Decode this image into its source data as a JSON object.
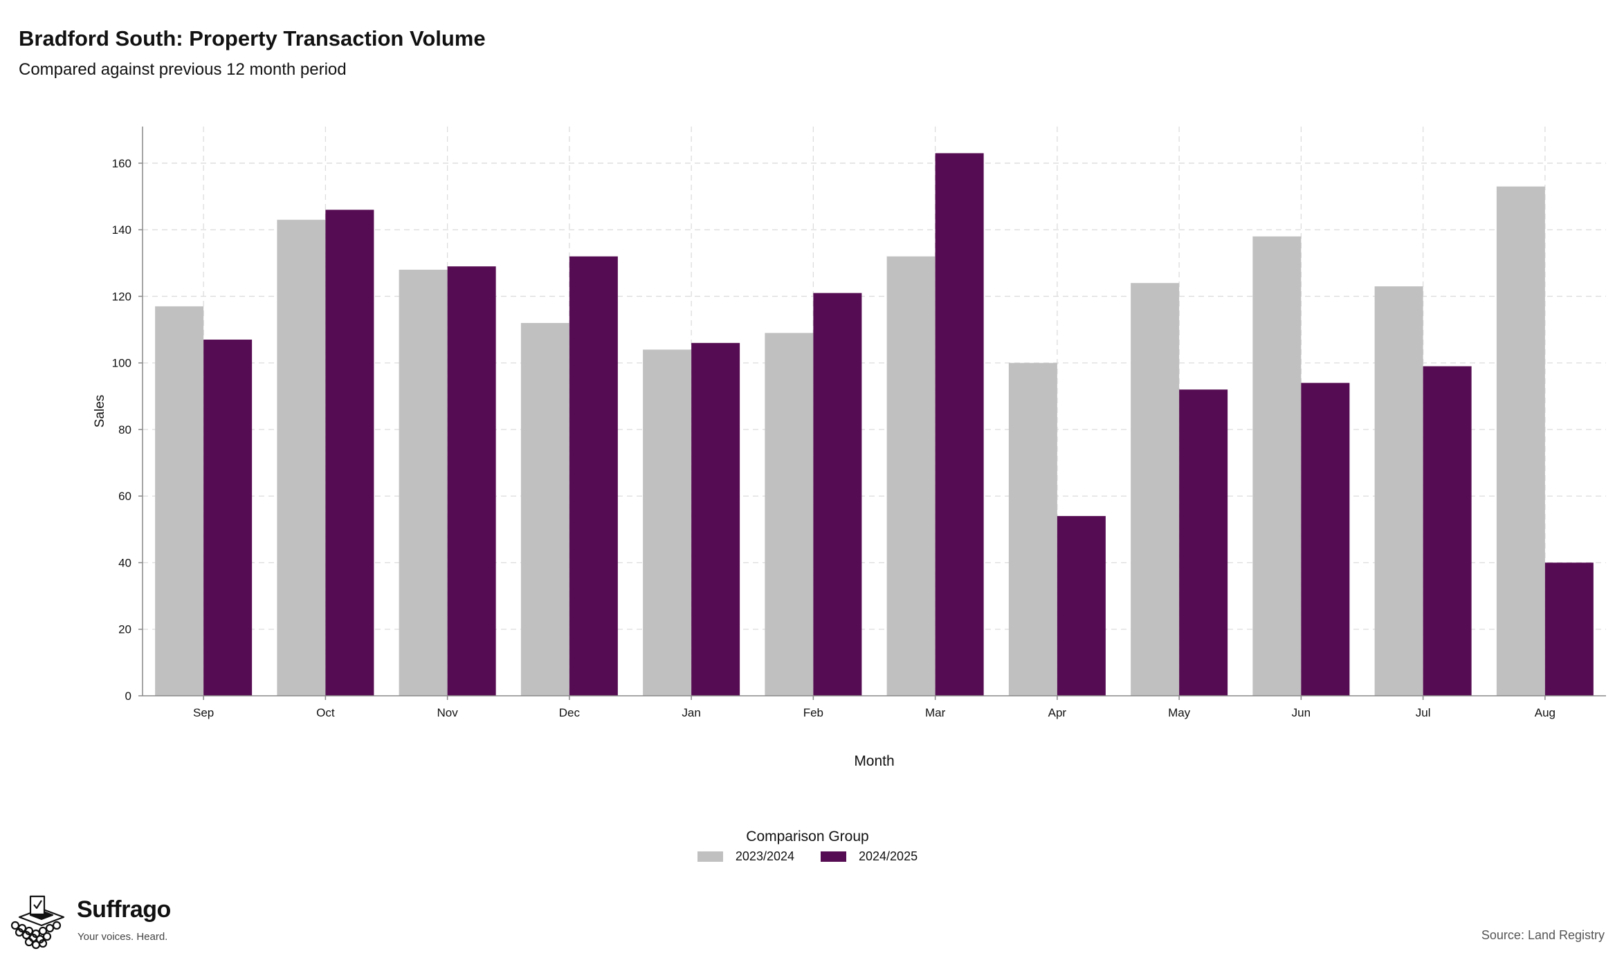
{
  "header": {
    "title": "Bradford South: Property Transaction Volume",
    "subtitle": "Compared against previous 12 month period"
  },
  "chart_data": {
    "type": "bar",
    "categories": [
      "Sep",
      "Oct",
      "Nov",
      "Dec",
      "Jan",
      "Feb",
      "Mar",
      "Apr",
      "May",
      "Jun",
      "Jul",
      "Aug"
    ],
    "series": [
      {
        "name": "2023/2024",
        "color": "#c0c0c0",
        "values": [
          117,
          143,
          128,
          112,
          104,
          109,
          132,
          100,
          124,
          138,
          123,
          153
        ]
      },
      {
        "name": "2024/2025",
        "color": "#560c52",
        "values": [
          107,
          146,
          129,
          132,
          106,
          121,
          163,
          54,
          92,
          94,
          99,
          40
        ]
      }
    ],
    "xlabel": "Month",
    "ylabel": "Sales",
    "ylim": [
      0,
      171
    ],
    "yticks": [
      0,
      20,
      40,
      60,
      80,
      100,
      120,
      140,
      160
    ],
    "grid": true,
    "legend_title": "Comparison Group",
    "legend_position": "bottom"
  },
  "legend": {
    "title": "Comparison Group",
    "items": [
      {
        "label": "2023/2024",
        "color": "#c0c0c0"
      },
      {
        "label": "2024/2025",
        "color": "#560c52"
      }
    ]
  },
  "brand": {
    "name": "Suffrago",
    "tagline": "Your voices. Heard.",
    "icon": "ballot-box-icon"
  },
  "footer": {
    "source": "Source: Land Registry"
  }
}
